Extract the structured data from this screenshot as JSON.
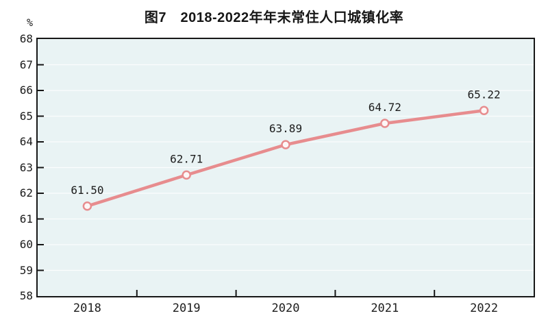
{
  "header": {
    "title": "图7　2018-2022年年末常住人口城镇化率"
  },
  "chart_data": {
    "type": "line",
    "title": "图7　2018-2022年年末常住人口城镇化率",
    "unit_label": "%",
    "categories": [
      "2018",
      "2019",
      "2020",
      "2021",
      "2022"
    ],
    "series": [
      {
        "name": "年末常住人口城镇化率",
        "values": [
          61.5,
          62.71,
          63.89,
          64.72,
          65.22
        ]
      }
    ],
    "point_labels": [
      "61.50",
      "62.71",
      "63.89",
      "64.72",
      "65.22"
    ],
    "ylim": [
      58,
      68
    ],
    "ytick_step": 1,
    "grid": true,
    "legend_position": "none",
    "colors": {
      "line": "#e78c8e",
      "marker_fill": "#fdf6f6",
      "marker_stroke": "#e78c8e",
      "plot_background": "#e9f3f4",
      "axis": "#161616",
      "text": "#1c1c1c",
      "gridline": "#ffffff"
    }
  }
}
